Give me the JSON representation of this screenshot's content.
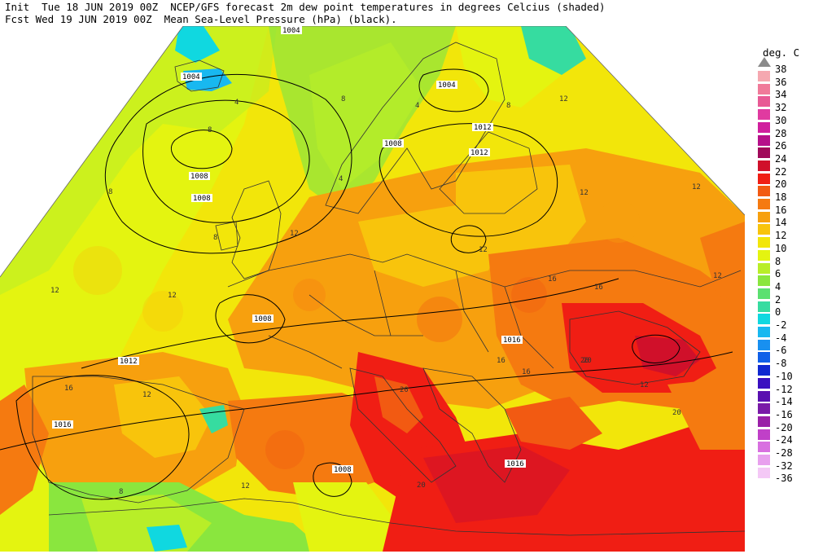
{
  "header": {
    "line1": "Init  Tue 18 JUN 2019 00Z  NCEP/GFS forecast 2m dew point temperatures in degrees Celcius (shaded)",
    "line2": "Fcst Wed 19 JUN 2019 00Z  Mean Sea-Level Pressure (hPa) (black)."
  },
  "legend": {
    "title": "deg. C",
    "levels": [
      {
        "label": "38",
        "color": "#9a9a9a"
      },
      {
        "label": "36",
        "color": "#f5a8b0"
      },
      {
        "label": "34",
        "color": "#f07a9a"
      },
      {
        "label": "32",
        "color": "#e85a95"
      },
      {
        "label": "30",
        "color": "#e03aa0"
      },
      {
        "label": "28",
        "color": "#d01f9e"
      },
      {
        "label": "26",
        "color": "#b6108a"
      },
      {
        "label": "24",
        "color": "#a00a5a"
      },
      {
        "label": "22",
        "color": "#d0102a"
      },
      {
        "label": "20",
        "color": "#f01e14"
      },
      {
        "label": "18",
        "color": "#f25a12"
      },
      {
        "label": "16",
        "color": "#f57a10"
      },
      {
        "label": "14",
        "color": "#f7a00e"
      },
      {
        "label": "12",
        "color": "#f8c40c"
      },
      {
        "label": "10",
        "color": "#f2e60a"
      },
      {
        "label": "8",
        "color": "#e4f410"
      },
      {
        "label": "6",
        "color": "#b8ee28"
      },
      {
        "label": "4",
        "color": "#8ae63e"
      },
      {
        "label": "2",
        "color": "#5ce070"
      },
      {
        "label": "0",
        "color": "#36dca0"
      },
      {
        "label": "-2",
        "color": "#10d8e0"
      },
      {
        "label": "-4",
        "color": "#18b8f0"
      },
      {
        "label": "-6",
        "color": "#1890f0"
      },
      {
        "label": "-8",
        "color": "#1060e8"
      },
      {
        "label": "-10",
        "color": "#1028d0"
      },
      {
        "label": "-12",
        "color": "#3a10c0"
      },
      {
        "label": "-14",
        "color": "#5a10b0"
      },
      {
        "label": "-16",
        "color": "#7a1aa8"
      },
      {
        "label": "-20",
        "color": "#9a20a8"
      },
      {
        "label": "-24",
        "color": "#c040c8"
      },
      {
        "label": "-28",
        "color": "#d870e0"
      },
      {
        "label": "-32",
        "color": "#e8a0ee"
      },
      {
        "label": "-36",
        "color": "#f4c8f6"
      }
    ]
  },
  "map": {
    "isobar_labels": [
      "1004",
      "1008",
      "1008",
      "1004",
      "1008",
      "1004",
      "1008",
      "1012",
      "1012",
      "1016",
      "1012",
      "1016",
      "1016",
      "1008"
    ],
    "dewpoint_labels": [
      "4",
      "8",
      "8",
      "8",
      "4",
      "8",
      "4",
      "8",
      "12",
      "12",
      "12",
      "12",
      "16",
      "16",
      "12",
      "20",
      "20",
      "20",
      "16",
      "12",
      "16",
      "12",
      "12",
      "8",
      "12",
      "16",
      "20",
      "20",
      "12",
      "12"
    ]
  }
}
